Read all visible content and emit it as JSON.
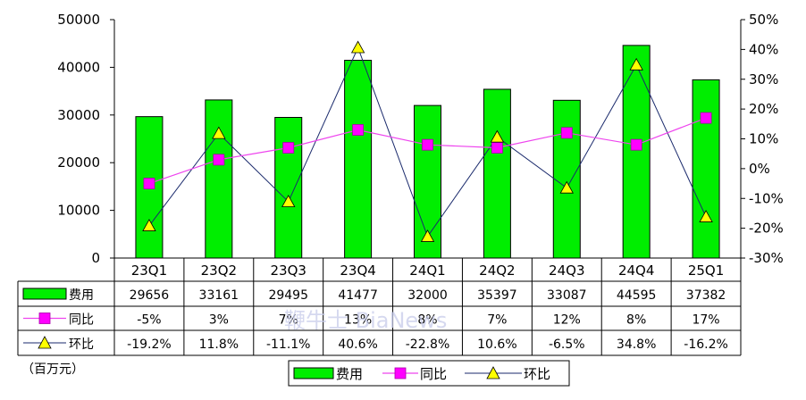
{
  "chart_data": {
    "type": "bar",
    "categories": [
      "23Q1",
      "23Q2",
      "23Q3",
      "23Q4",
      "24Q1",
      "24Q2",
      "24Q3",
      "24Q4",
      "25Q1"
    ],
    "series": [
      {
        "name": "费用",
        "type": "bar",
        "axis": "left",
        "values": [
          29656,
          33161,
          29495,
          41477,
          32000,
          35397,
          33087,
          44595,
          37382
        ],
        "labels": [
          "29656",
          "33161",
          "29495",
          "41477",
          "32000",
          "35397",
          "33087",
          "44595",
          "37382"
        ],
        "color": "#00ee00"
      },
      {
        "name": "同比",
        "type": "line",
        "axis": "right",
        "values": [
          -5,
          3,
          7,
          13,
          8,
          7,
          12,
          8,
          17
        ],
        "labels": [
          "-5%",
          "3%",
          "7%",
          "13%",
          "8%",
          "7%",
          "12%",
          "8%",
          "17%"
        ],
        "color": "#ee44ee",
        "marker": "square"
      },
      {
        "name": "环比",
        "type": "line",
        "axis": "right",
        "values": [
          -19.2,
          11.8,
          -11.1,
          40.6,
          -22.8,
          10.6,
          -6.5,
          34.8,
          -16.2
        ],
        "labels": [
          "-19.2%",
          "11.8%",
          "-11.1%",
          "40.6%",
          "-22.8%",
          "10.6%",
          "-6.5%",
          "34.8%",
          "-16.2%"
        ],
        "color": "#1a2a6c",
        "marker": "triangle",
        "marker_color": "#ffff00"
      }
    ],
    "y_left": {
      "ylim": [
        0,
        50000
      ],
      "ticks": [
        "0",
        "10000",
        "20000",
        "30000",
        "40000",
        "50000"
      ]
    },
    "y_right": {
      "ylim": [
        -30,
        50
      ],
      "ticks": [
        "-30%",
        "-20%",
        "-10%",
        "0%",
        "10%",
        "20%",
        "30%",
        "40%",
        "50%"
      ]
    },
    "unit_label": "（百万元）",
    "legend_position": "bottom-center",
    "data_table": true,
    "grid": false
  },
  "watermark": "鞭牛士 BiaNews"
}
